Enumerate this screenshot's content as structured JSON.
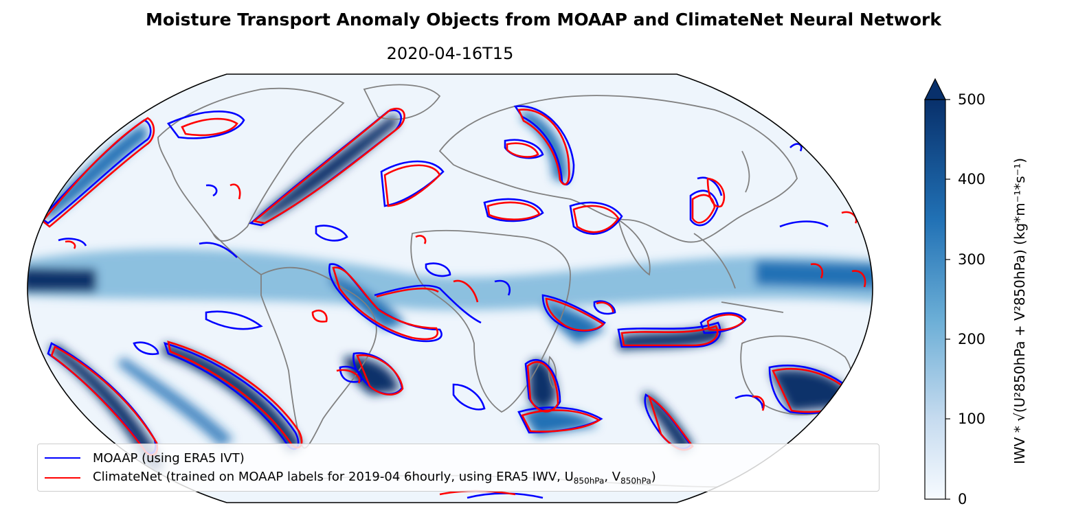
{
  "title": "Moisture Transport Anomaly Objects from MOAAP and ClimateNet Neural Network",
  "subtitle": "2020-04-16T15",
  "legend": {
    "moaap": "MOAAP (using ERA5 IVT)",
    "climatenet_prefix": "ClimateNet (trained on MOAAP labels for 2019-04 6hourly, using ERA5 IWV, U",
    "climatenet_sub1": "850hPa",
    "climatenet_mid": ", V",
    "climatenet_sub2": "850hPa",
    "climatenet_suffix": ")"
  },
  "colorbar": {
    "ticks": [
      "500",
      "400",
      "300",
      "200",
      "100",
      "0"
    ],
    "label": "IWV * √(U²850hPa + V²850hPa)  (kg*m⁻¹*s⁻¹)",
    "min": 0,
    "max": 500,
    "extend": "max"
  },
  "colors": {
    "moaap": "#0000ff",
    "climatenet": "#ff0000",
    "coastline": "#808080",
    "cmap_low": "#f7fbff",
    "cmap_high": "#08306b"
  }
}
